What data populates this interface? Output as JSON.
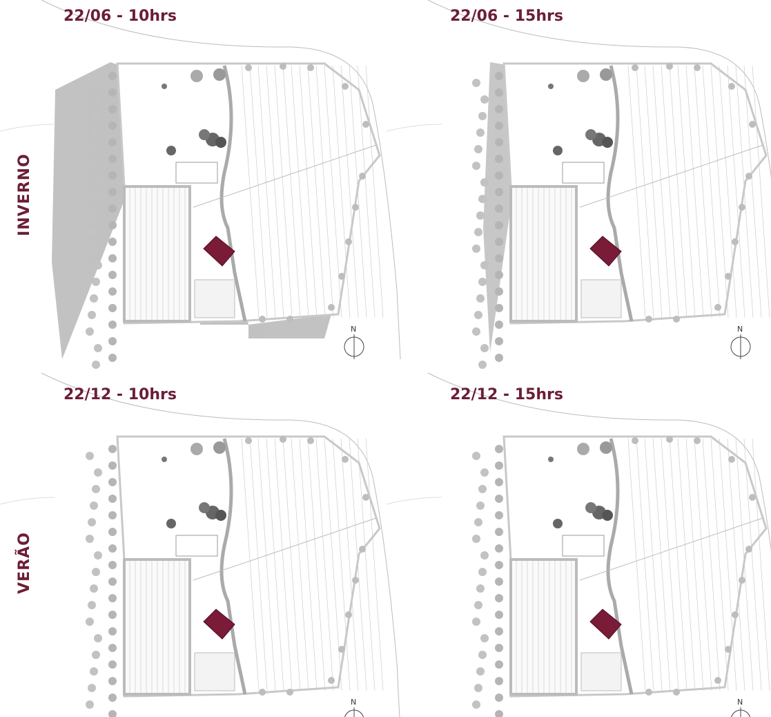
{
  "rows": [
    "INVERNO",
    "VERÃO"
  ],
  "panels": [
    {
      "title": "22/06 - 10hrs",
      "north": "N"
    },
    {
      "title": "22/06 - 15hrs",
      "north": "N"
    },
    {
      "title": "22/12 - 10hrs",
      "north": "N"
    },
    {
      "title": "22/12 - 15hrs",
      "north": "N"
    }
  ]
}
